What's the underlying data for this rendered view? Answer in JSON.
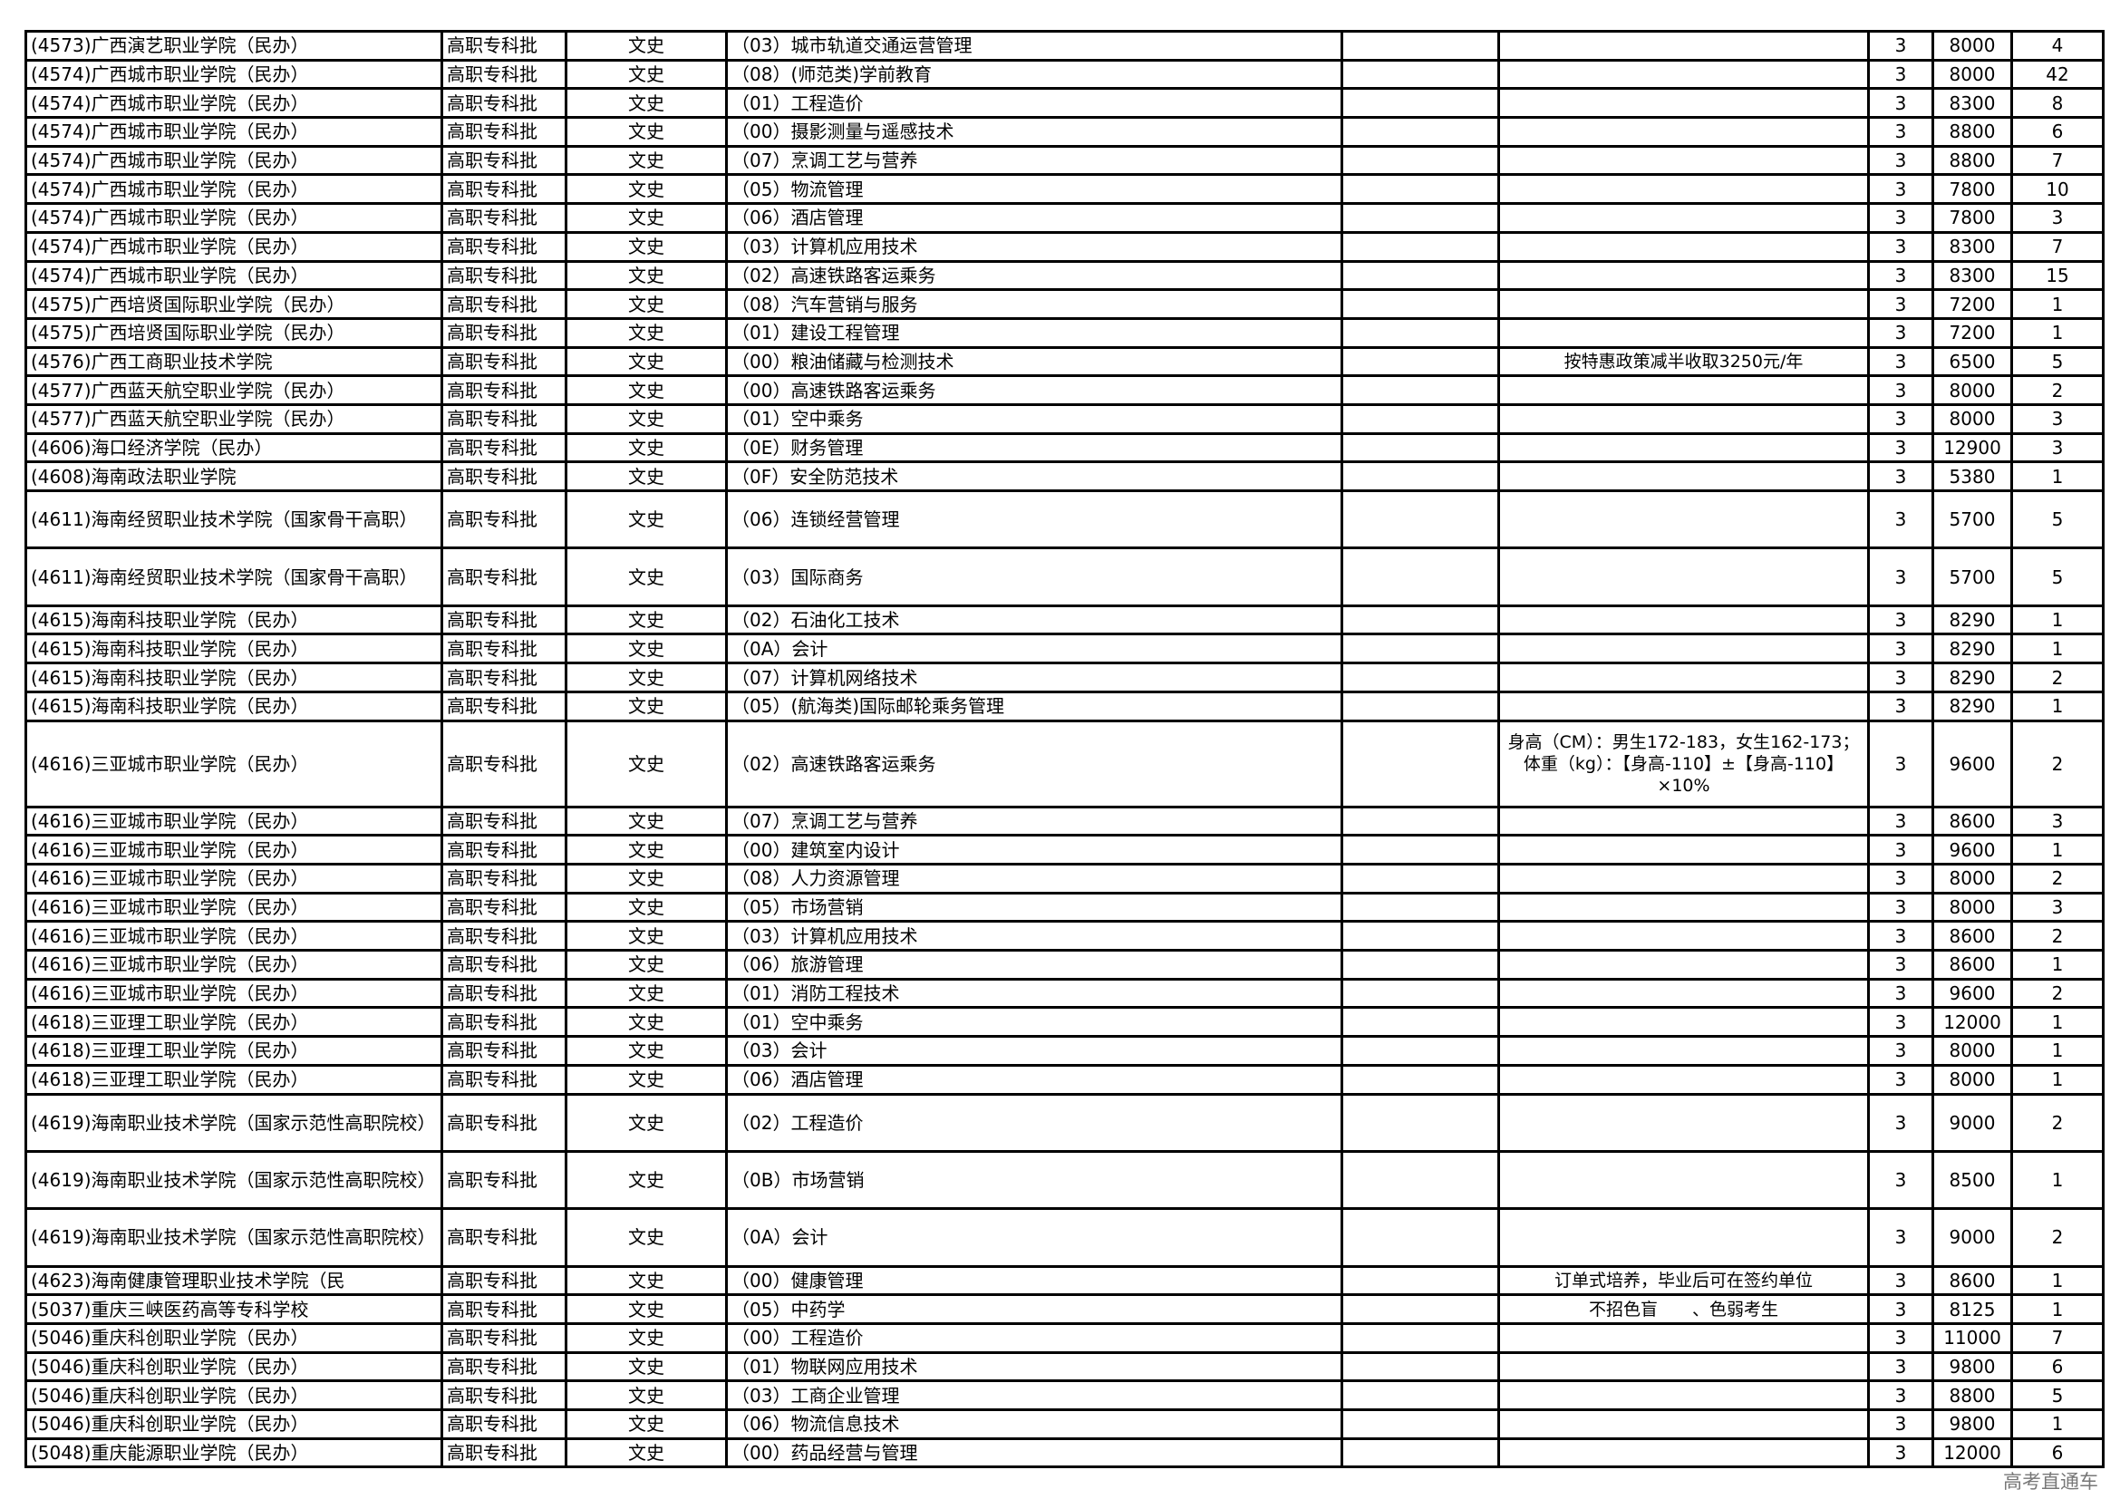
{
  "rows": [
    {
      "school": "(4573)广西演艺职业学院（民办）",
      "batch": "高职专科批",
      "subject": "文史",
      "major": "（03）城市轨道交通运营管理",
      "extra": "",
      "note": "",
      "years": "3",
      "fee": "8000",
      "count": "4",
      "lines": 1
    },
    {
      "school": "(4574)广西城市职业学院（民办）",
      "batch": "高职专科批",
      "subject": "文史",
      "major": "（08）(师范类)学前教育",
      "extra": "",
      "note": "",
      "years": "3",
      "fee": "8000",
      "count": "42",
      "lines": 1
    },
    {
      "school": "(4574)广西城市职业学院（民办）",
      "batch": "高职专科批",
      "subject": "文史",
      "major": "（01）工程造价",
      "extra": "",
      "note": "",
      "years": "3",
      "fee": "8300",
      "count": "8",
      "lines": 1
    },
    {
      "school": "(4574)广西城市职业学院（民办）",
      "batch": "高职专科批",
      "subject": "文史",
      "major": "（00）摄影测量与遥感技术",
      "extra": "",
      "note": "",
      "years": "3",
      "fee": "8800",
      "count": "6",
      "lines": 1
    },
    {
      "school": "(4574)广西城市职业学院（民办）",
      "batch": "高职专科批",
      "subject": "文史",
      "major": "（07）烹调工艺与营养",
      "extra": "",
      "note": "",
      "years": "3",
      "fee": "8800",
      "count": "7",
      "lines": 1
    },
    {
      "school": "(4574)广西城市职业学院（民办）",
      "batch": "高职专科批",
      "subject": "文史",
      "major": "（05）物流管理",
      "extra": "",
      "note": "",
      "years": "3",
      "fee": "7800",
      "count": "10",
      "lines": 1
    },
    {
      "school": "(4574)广西城市职业学院（民办）",
      "batch": "高职专科批",
      "subject": "文史",
      "major": "（06）酒店管理",
      "extra": "",
      "note": "",
      "years": "3",
      "fee": "7800",
      "count": "3",
      "lines": 1
    },
    {
      "school": "(4574)广西城市职业学院（民办）",
      "batch": "高职专科批",
      "subject": "文史",
      "major": "（03）计算机应用技术",
      "extra": "",
      "note": "",
      "years": "3",
      "fee": "8300",
      "count": "7",
      "lines": 1
    },
    {
      "school": "(4574)广西城市职业学院（民办）",
      "batch": "高职专科批",
      "subject": "文史",
      "major": "（02）高速铁路客运乘务",
      "extra": "",
      "note": "",
      "years": "3",
      "fee": "8300",
      "count": "15",
      "lines": 1
    },
    {
      "school": "(4575)广西培贤国际职业学院（民办）",
      "batch": "高职专科批",
      "subject": "文史",
      "major": "（08）汽车营销与服务",
      "extra": "",
      "note": "",
      "years": "3",
      "fee": "7200",
      "count": "1",
      "lines": 1
    },
    {
      "school": "(4575)广西培贤国际职业学院（民办）",
      "batch": "高职专科批",
      "subject": "文史",
      "major": "（01）建设工程管理",
      "extra": "",
      "note": "",
      "years": "3",
      "fee": "7200",
      "count": "1",
      "lines": 1
    },
    {
      "school": "(4576)广西工商职业技术学院",
      "batch": "高职专科批",
      "subject": "文史",
      "major": "（00）粮油储藏与检测技术",
      "extra": "",
      "note": "按特惠政策减半收取3250元/年",
      "years": "3",
      "fee": "6500",
      "count": "5",
      "lines": 1
    },
    {
      "school": "(4577)广西蓝天航空职业学院（民办）",
      "batch": "高职专科批",
      "subject": "文史",
      "major": "（00）高速铁路客运乘务",
      "extra": "",
      "note": "",
      "years": "3",
      "fee": "8000",
      "count": "2",
      "lines": 1
    },
    {
      "school": "(4577)广西蓝天航空职业学院（民办）",
      "batch": "高职专科批",
      "subject": "文史",
      "major": "（01）空中乘务",
      "extra": "",
      "note": "",
      "years": "3",
      "fee": "8000",
      "count": "3",
      "lines": 1
    },
    {
      "school": "(4606)海口经济学院（民办）",
      "batch": "高职专科批",
      "subject": "文史",
      "major": "（0E）财务管理",
      "extra": "",
      "note": "",
      "years": "3",
      "fee": "12900",
      "count": "3",
      "lines": 1
    },
    {
      "school": "(4608)海南政法职业学院",
      "batch": "高职专科批",
      "subject": "文史",
      "major": "（0F）安全防范技术",
      "extra": "",
      "note": "",
      "years": "3",
      "fee": "5380",
      "count": "1",
      "lines": 1
    },
    {
      "school": "(4611)海南经贸职业技术学院（国家骨干高职）",
      "batch": "高职专科批",
      "subject": "文史",
      "major": "（06）连锁经营管理",
      "extra": "",
      "note": "",
      "years": "3",
      "fee": "5700",
      "count": "5",
      "lines": 2
    },
    {
      "school": "(4611)海南经贸职业技术学院（国家骨干高职）",
      "batch": "高职专科批",
      "subject": "文史",
      "major": "（03）国际商务",
      "extra": "",
      "note": "",
      "years": "3",
      "fee": "5700",
      "count": "5",
      "lines": 2
    },
    {
      "school": "(4615)海南科技职业学院（民办）",
      "batch": "高职专科批",
      "subject": "文史",
      "major": "（02）石油化工技术",
      "extra": "",
      "note": "",
      "years": "3",
      "fee": "8290",
      "count": "1",
      "lines": 1
    },
    {
      "school": "(4615)海南科技职业学院（民办）",
      "batch": "高职专科批",
      "subject": "文史",
      "major": "（0A）会计",
      "extra": "",
      "note": "",
      "years": "3",
      "fee": "8290",
      "count": "1",
      "lines": 1
    },
    {
      "school": "(4615)海南科技职业学院（民办）",
      "batch": "高职专科批",
      "subject": "文史",
      "major": "（07）计算机网络技术",
      "extra": "",
      "note": "",
      "years": "3",
      "fee": "8290",
      "count": "2",
      "lines": 1
    },
    {
      "school": "(4615)海南科技职业学院（民办）",
      "batch": "高职专科批",
      "subject": "文史",
      "major": "（05）(航海类)国际邮轮乘务管理",
      "extra": "",
      "note": "",
      "years": "3",
      "fee": "8290",
      "count": "1",
      "lines": 1
    },
    {
      "school": "(4616)三亚城市职业学院（民办）",
      "batch": "高职专科批",
      "subject": "文史",
      "major": "（02）高速铁路客运乘务",
      "extra": "",
      "note": "身高（CM）：男生172-183，女生162-173；体重（kg）：【身高-110】±【身高-110】×10%",
      "years": "3",
      "fee": "9600",
      "count": "2",
      "lines": 3
    },
    {
      "school": "(4616)三亚城市职业学院（民办）",
      "batch": "高职专科批",
      "subject": "文史",
      "major": "（07）烹调工艺与营养",
      "extra": "",
      "note": "",
      "years": "3",
      "fee": "8600",
      "count": "3",
      "lines": 1
    },
    {
      "school": "(4616)三亚城市职业学院（民办）",
      "batch": "高职专科批",
      "subject": "文史",
      "major": "（00）建筑室内设计",
      "extra": "",
      "note": "",
      "years": "3",
      "fee": "9600",
      "count": "1",
      "lines": 1
    },
    {
      "school": "(4616)三亚城市职业学院（民办）",
      "batch": "高职专科批",
      "subject": "文史",
      "major": "（08）人力资源管理",
      "extra": "",
      "note": "",
      "years": "3",
      "fee": "8000",
      "count": "2",
      "lines": 1
    },
    {
      "school": "(4616)三亚城市职业学院（民办）",
      "batch": "高职专科批",
      "subject": "文史",
      "major": "（05）市场营销",
      "extra": "",
      "note": "",
      "years": "3",
      "fee": "8000",
      "count": "3",
      "lines": 1
    },
    {
      "school": "(4616)三亚城市职业学院（民办）",
      "batch": "高职专科批",
      "subject": "文史",
      "major": "（03）计算机应用技术",
      "extra": "",
      "note": "",
      "years": "3",
      "fee": "8600",
      "count": "2",
      "lines": 1
    },
    {
      "school": "(4616)三亚城市职业学院（民办）",
      "batch": "高职专科批",
      "subject": "文史",
      "major": "（06）旅游管理",
      "extra": "",
      "note": "",
      "years": "3",
      "fee": "8600",
      "count": "1",
      "lines": 1
    },
    {
      "school": "(4616)三亚城市职业学院（民办）",
      "batch": "高职专科批",
      "subject": "文史",
      "major": "（01）消防工程技术",
      "extra": "",
      "note": "",
      "years": "3",
      "fee": "9600",
      "count": "2",
      "lines": 1
    },
    {
      "school": "(4618)三亚理工职业学院（民办）",
      "batch": "高职专科批",
      "subject": "文史",
      "major": "（01）空中乘务",
      "extra": "",
      "note": "",
      "years": "3",
      "fee": "12000",
      "count": "1",
      "lines": 1
    },
    {
      "school": "(4618)三亚理工职业学院（民办）",
      "batch": "高职专科批",
      "subject": "文史",
      "major": "（03）会计",
      "extra": "",
      "note": "",
      "years": "3",
      "fee": "8000",
      "count": "1",
      "lines": 1
    },
    {
      "school": "(4618)三亚理工职业学院（民办）",
      "batch": "高职专科批",
      "subject": "文史",
      "major": "（06）酒店管理",
      "extra": "",
      "note": "",
      "years": "3",
      "fee": "8000",
      "count": "1",
      "lines": 1
    },
    {
      "school": "(4619)海南职业技术学院（国家示范性高职院校）",
      "batch": "高职专科批",
      "subject": "文史",
      "major": "（02）工程造价",
      "extra": "",
      "note": "",
      "years": "3",
      "fee": "9000",
      "count": "2",
      "lines": 2
    },
    {
      "school": "(4619)海南职业技术学院（国家示范性高职院校）",
      "batch": "高职专科批",
      "subject": "文史",
      "major": "（0B）市场营销",
      "extra": "",
      "note": "",
      "years": "3",
      "fee": "8500",
      "count": "1",
      "lines": 2
    },
    {
      "school": "(4619)海南职业技术学院（国家示范性高职院校）",
      "batch": "高职专科批",
      "subject": "文史",
      "major": "（0A）会计",
      "extra": "",
      "note": "",
      "years": "3",
      "fee": "9000",
      "count": "2",
      "lines": 2
    },
    {
      "school": "(4623)海南健康管理职业技术学院（民",
      "batch": "高职专科批",
      "subject": "文史",
      "major": "（00）健康管理",
      "extra": "",
      "note": "订单式培养，毕业后可在签约单位",
      "years": "3",
      "fee": "8600",
      "count": "1",
      "lines": 1
    },
    {
      "school": "(5037)重庆三峡医药高等专科学校",
      "batch": "高职专科批",
      "subject": "文史",
      "major": "（05）中药学",
      "extra": "",
      "note": "不招色盲　　、色弱考生",
      "years": "3",
      "fee": "8125",
      "count": "1",
      "lines": 1
    },
    {
      "school": "(5046)重庆科创职业学院（民办）",
      "batch": "高职专科批",
      "subject": "文史",
      "major": "（00）工程造价",
      "extra": "",
      "note": "",
      "years": "3",
      "fee": "11000",
      "count": "7",
      "lines": 1
    },
    {
      "school": "(5046)重庆科创职业学院（民办）",
      "batch": "高职专科批",
      "subject": "文史",
      "major": "（01）物联网应用技术",
      "extra": "",
      "note": "",
      "years": "3",
      "fee": "9800",
      "count": "6",
      "lines": 1
    },
    {
      "school": "(5046)重庆科创职业学院（民办）",
      "batch": "高职专科批",
      "subject": "文史",
      "major": "（03）工商企业管理",
      "extra": "",
      "note": "",
      "years": "3",
      "fee": "8800",
      "count": "5",
      "lines": 1
    },
    {
      "school": "(5046)重庆科创职业学院（民办）",
      "batch": "高职专科批",
      "subject": "文史",
      "major": "（06）物流信息技术",
      "extra": "",
      "note": "",
      "years": "3",
      "fee": "9800",
      "count": "1",
      "lines": 1
    },
    {
      "school": "(5048)重庆能源职业学院（民办）",
      "batch": "高职专科批",
      "subject": "文史",
      "major": "（00）药品经营与管理",
      "extra": "",
      "note": "",
      "years": "3",
      "fee": "12000",
      "count": "6",
      "lines": 1
    }
  ],
  "watermark": "高考直通车"
}
